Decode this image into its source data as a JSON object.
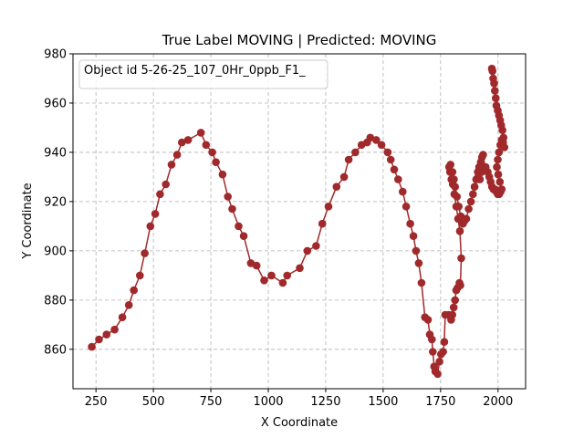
{
  "chart_data": {
    "type": "line",
    "title": "True Label MOVING | Predicted: MOVING",
    "xlabel": "X Coordinate",
    "ylabel": "Y Coordinate",
    "xlim": [
      150,
      2120
    ],
    "ylim": [
      844,
      980
    ],
    "xticks": [
      250,
      500,
      750,
      1000,
      1250,
      1500,
      1750,
      2000
    ],
    "yticks": [
      860,
      880,
      900,
      920,
      940,
      960,
      980
    ],
    "grid": true,
    "legend_position": "top-left",
    "series_color": "#a0292b",
    "series": [
      {
        "name": "Object id 5-26-25_107_0Hr_0ppb_F1_",
        "points": [
          [
            232,
            861
          ],
          [
            263,
            864
          ],
          [
            296,
            866
          ],
          [
            331,
            868
          ],
          [
            365,
            873
          ],
          [
            393,
            878
          ],
          [
            415,
            884
          ],
          [
            441,
            890
          ],
          [
            462,
            899
          ],
          [
            487,
            910
          ],
          [
            508,
            915
          ],
          [
            529,
            923
          ],
          [
            554,
            927
          ],
          [
            579,
            935
          ],
          [
            603,
            939
          ],
          [
            624,
            944
          ],
          [
            651,
            945
          ],
          [
            707,
            948
          ],
          [
            729,
            943
          ],
          [
            756,
            940
          ],
          [
            772,
            936
          ],
          [
            801,
            931
          ],
          [
            824,
            922
          ],
          [
            843,
            917
          ],
          [
            871,
            910
          ],
          [
            893,
            906
          ],
          [
            924,
            895
          ],
          [
            949,
            894
          ],
          [
            982,
            888
          ],
          [
            1014,
            890
          ],
          [
            1063,
            887
          ],
          [
            1082,
            890
          ],
          [
            1137,
            893
          ],
          [
            1170,
            900
          ],
          [
            1208,
            902
          ],
          [
            1235,
            911
          ],
          [
            1262,
            918
          ],
          [
            1297,
            926
          ],
          [
            1330,
            930
          ],
          [
            1350,
            937
          ],
          [
            1379,
            940
          ],
          [
            1406,
            943
          ],
          [
            1430,
            944
          ],
          [
            1444,
            946
          ],
          [
            1470,
            945
          ],
          [
            1493,
            943
          ],
          [
            1520,
            940
          ],
          [
            1533,
            937
          ],
          [
            1548,
            933
          ],
          [
            1565,
            929
          ],
          [
            1585,
            924
          ],
          [
            1600,
            918
          ],
          [
            1618,
            911
          ],
          [
            1632,
            906
          ],
          [
            1643,
            900
          ],
          [
            1655,
            895
          ],
          [
            1667,
            887
          ],
          [
            1682,
            873
          ],
          [
            1695,
            872
          ],
          [
            1703,
            866
          ],
          [
            1712,
            864
          ],
          [
            1716,
            859
          ],
          [
            1722,
            853
          ],
          [
            1727,
            851
          ],
          [
            1737,
            850
          ],
          [
            1745,
            855
          ],
          [
            1752,
            858
          ],
          [
            1761,
            859
          ],
          [
            1766,
            863
          ],
          [
            1770,
            874
          ],
          [
            1785,
            874
          ],
          [
            1796,
            872
          ],
          [
            1801,
            874
          ],
          [
            1807,
            877
          ],
          [
            1813,
            880
          ],
          [
            1818,
            884
          ],
          [
            1824,
            885
          ],
          [
            1832,
            887
          ],
          [
            1836,
            886
          ],
          [
            1840,
            897
          ],
          [
            1834,
            908
          ],
          [
            1826,
            913
          ],
          [
            1818,
            918
          ],
          [
            1810,
            923
          ],
          [
            1803,
            927
          ],
          [
            1797,
            929
          ],
          [
            1791,
            932
          ],
          [
            1787,
            934
          ],
          [
            1793,
            935
          ],
          [
            1802,
            932
          ],
          [
            1808,
            929
          ],
          [
            1813,
            926
          ],
          [
            1821,
            922
          ],
          [
            1829,
            918
          ],
          [
            1838,
            914
          ],
          [
            1847,
            911
          ],
          [
            1853,
            912
          ],
          [
            1862,
            913
          ],
          [
            1872,
            917
          ],
          [
            1882,
            920
          ],
          [
            1891,
            923
          ],
          [
            1898,
            926
          ],
          [
            1905,
            929
          ],
          [
            1912,
            932
          ],
          [
            1918,
            934
          ],
          [
            1925,
            936
          ],
          [
            1930,
            938
          ],
          [
            1935,
            939
          ],
          [
            1926,
            936
          ],
          [
            1919,
            933
          ],
          [
            1914,
            930
          ],
          [
            1921,
            929
          ],
          [
            1929,
            932
          ],
          [
            1938,
            933
          ],
          [
            1946,
            934
          ],
          [
            1955,
            932
          ],
          [
            1962,
            930
          ],
          [
            1968,
            928
          ],
          [
            1974,
            926
          ],
          [
            1980,
            925
          ],
          [
            1987,
            925
          ],
          [
            1993,
            924
          ],
          [
            1999,
            923
          ],
          [
            2005,
            923
          ],
          [
            2011,
            924
          ],
          [
            2016,
            925
          ],
          [
            2008,
            928
          ],
          [
            2001,
            931
          ],
          [
            1995,
            934
          ],
          [
            1999,
            937
          ],
          [
            2004,
            940
          ],
          [
            2010,
            943
          ],
          [
            2016,
            945
          ],
          [
            2022,
            944
          ],
          [
            2028,
            942
          ],
          [
            2024,
            946
          ],
          [
            2019,
            949
          ],
          [
            2014,
            951
          ],
          [
            2009,
            953
          ],
          [
            2004,
            955
          ],
          [
            1999,
            957
          ],
          [
            1993,
            959
          ],
          [
            1990,
            962
          ],
          [
            1986,
            965
          ],
          [
            1983,
            968
          ],
          [
            1979,
            970
          ],
          [
            1976,
            973
          ],
          [
            1973,
            974
          ]
        ]
      }
    ]
  }
}
